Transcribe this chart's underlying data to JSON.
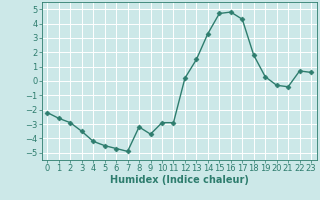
{
  "x": [
    0,
    1,
    2,
    3,
    4,
    5,
    6,
    7,
    8,
    9,
    10,
    11,
    12,
    13,
    14,
    15,
    16,
    17,
    18,
    19,
    20,
    21,
    22,
    23
  ],
  "y": [
    -2.2,
    -2.6,
    -2.9,
    -3.5,
    -4.2,
    -4.5,
    -4.7,
    -4.9,
    -3.2,
    -3.7,
    -2.9,
    -2.9,
    0.2,
    1.5,
    3.3,
    4.7,
    4.8,
    4.3,
    1.8,
    0.3,
    -0.3,
    -0.4,
    0.7,
    0.6
  ],
  "color": "#2e7d6e",
  "bg_color": "#cce8e8",
  "grid_color": "#ffffff",
  "xlabel": "Humidex (Indice chaleur)",
  "ylim": [
    -5.5,
    5.5
  ],
  "xlim": [
    -0.5,
    23.5
  ],
  "yticks": [
    -5,
    -4,
    -3,
    -2,
    -1,
    0,
    1,
    2,
    3,
    4,
    5
  ],
  "xticks": [
    0,
    1,
    2,
    3,
    4,
    5,
    6,
    7,
    8,
    9,
    10,
    11,
    12,
    13,
    14,
    15,
    16,
    17,
    18,
    19,
    20,
    21,
    22,
    23
  ],
  "marker": "D",
  "markersize": 2.5,
  "linewidth": 1.0,
  "xlabel_fontsize": 7,
  "tick_fontsize": 6
}
